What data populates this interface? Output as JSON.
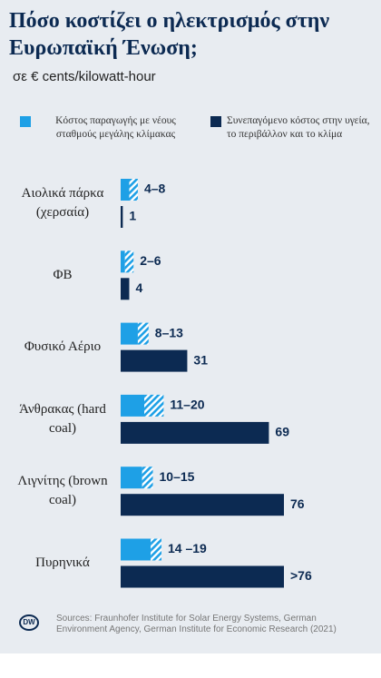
{
  "title": "Πόσο κοστίζει ο ηλεκτρισμός στην Ευρωπαϊκή Ένωση;",
  "subtitle": "σε € cents/kilowatt-hour",
  "chart_data": {
    "type": "range-bar",
    "categories": [
      "Αιολικά πάρκα (χερσαία)",
      "ΦΒ",
      "Φυσικό Αέριο",
      "Άνθρακας (hard coal)",
      "Λιγνίτης (brown coal)",
      "Πυρηνικά"
    ],
    "series": [
      {
        "name": "Κόστος παραγωγής με νέους σταθμούς μεγάλης κλίμακας",
        "color": "#1ea0e6",
        "low": [
          4,
          2,
          8,
          11,
          10,
          14
        ],
        "values": [
          8,
          6,
          13,
          20,
          15,
          19
        ],
        "value_labels": [
          "4–8",
          "2–6",
          "8–13",
          "11–20",
          "10–15",
          "14 –19"
        ]
      },
      {
        "name": "Συνεπαγόμενο κόστος στην υγεία, το περιβάλλον και το κλίμα",
        "color": "#0c2a52",
        "values": [
          1,
          4,
          31,
          69,
          76,
          76
        ],
        "value_labels": [
          "1",
          "4",
          "31",
          "69",
          "76",
          ">76"
        ]
      }
    ]
  },
  "footer": {
    "logo": "DW",
    "sources": "Sources: Fraunhofer Institute for Solar Energy Systems, German Environment Agency, German Institute for Economic Research (2021)"
  }
}
